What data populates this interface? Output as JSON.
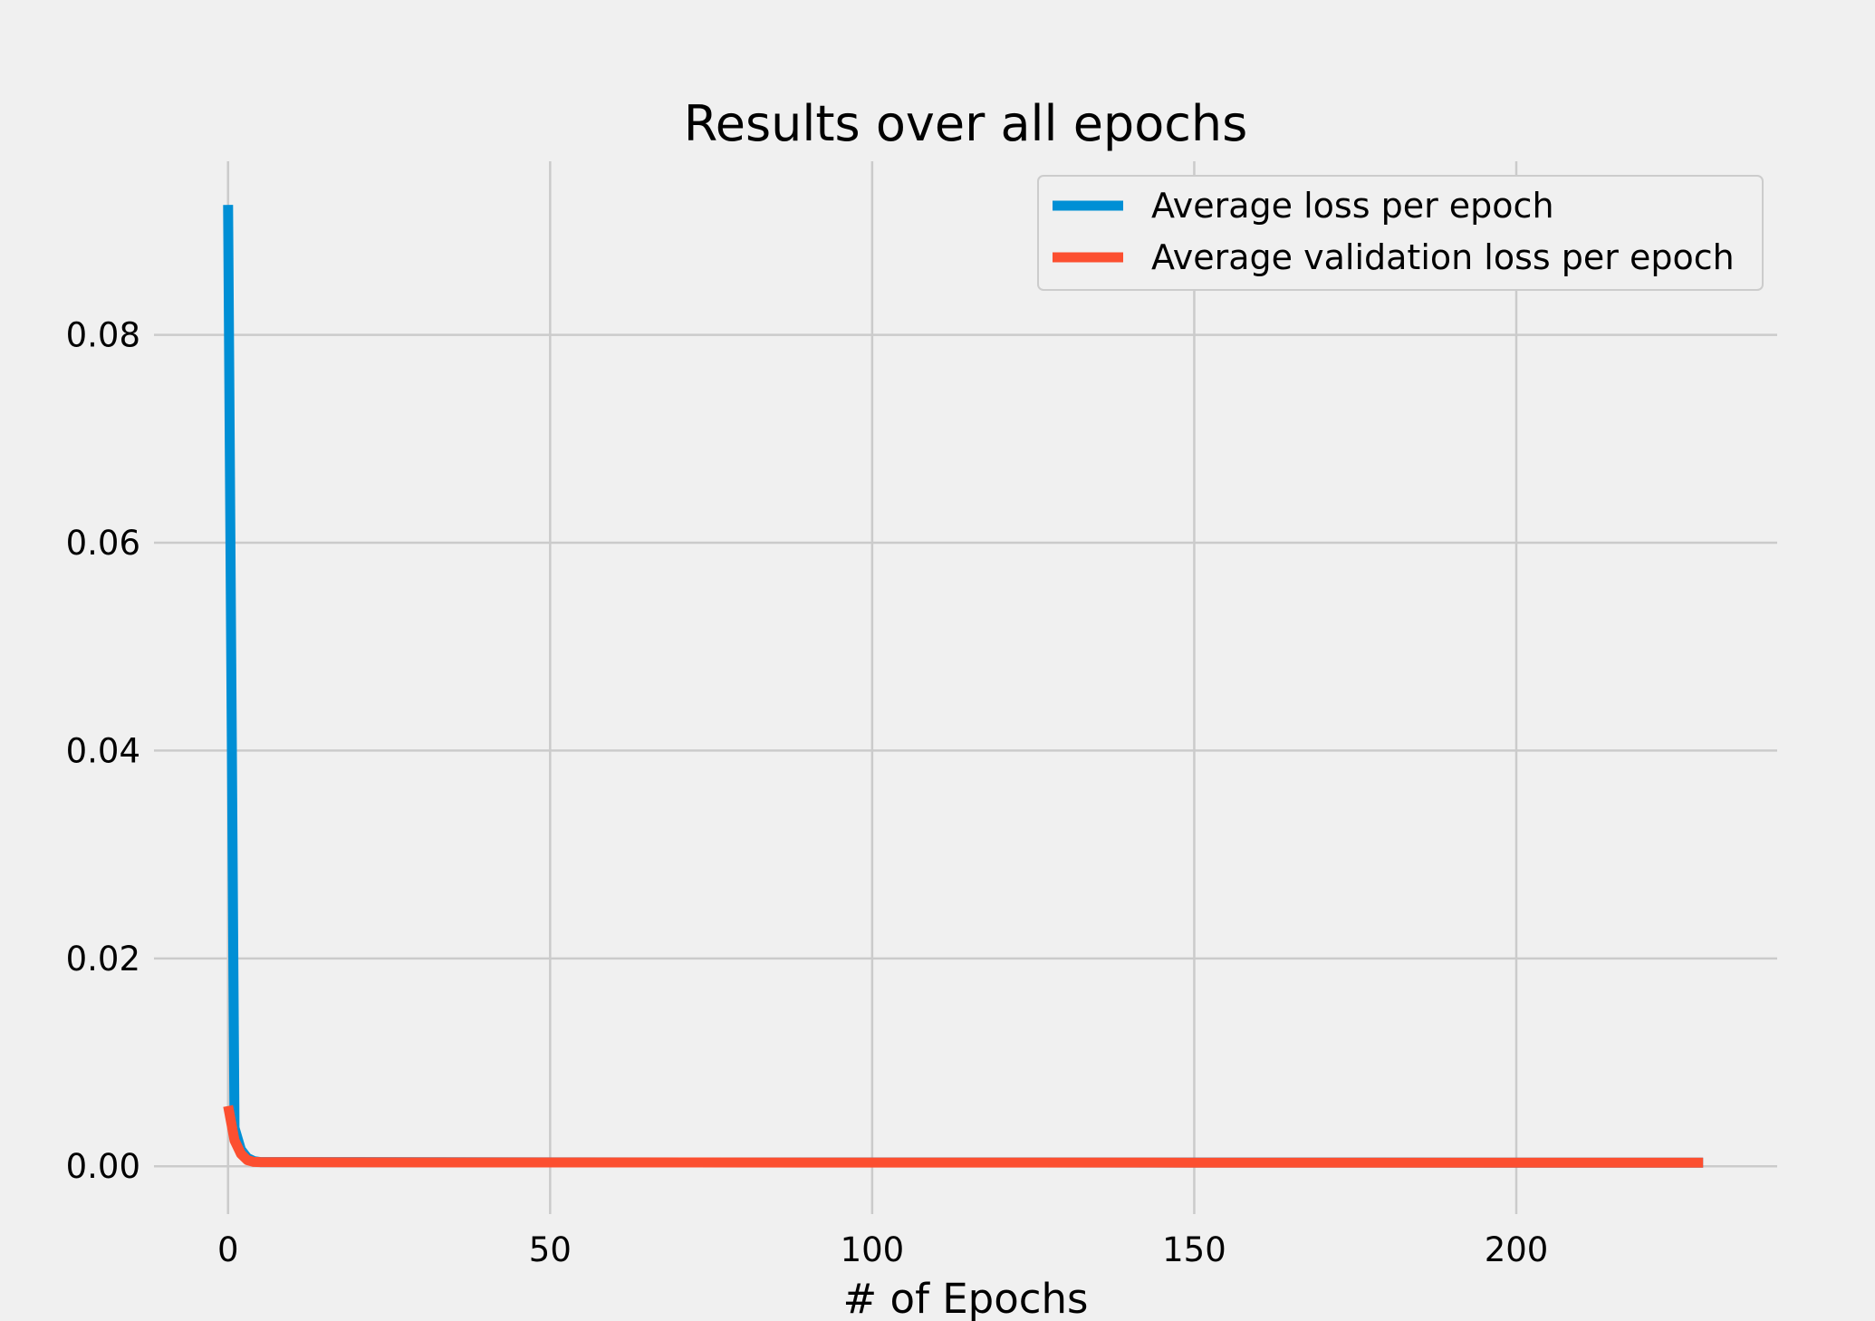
{
  "chart_data": {
    "type": "line",
    "title": "Results over all epochs",
    "xlabel": "# of Epochs",
    "ylabel": "",
    "xlim": [
      -11.5,
      240.5
    ],
    "ylim": [
      -0.0046,
      0.0967
    ],
    "xticks": [
      0,
      50,
      100,
      150,
      200
    ],
    "xtick_labels": [
      "0",
      "50",
      "100",
      "150",
      "200"
    ],
    "yticks": [
      0.0,
      0.02,
      0.04,
      0.06,
      0.08
    ],
    "ytick_labels": [
      "0.00",
      "0.02",
      "0.04",
      "0.06",
      "0.08"
    ],
    "grid": true,
    "legend_position": "top-right",
    "series": [
      {
        "name": "Average loss per epoch",
        "color": "#008fd5",
        "x": [
          0,
          1,
          2,
          3,
          4,
          5,
          10,
          20,
          50,
          100,
          150,
          200,
          229
        ],
        "y": [
          0.0925,
          0.0037,
          0.0016,
          0.0008,
          0.0005,
          0.0004,
          0.0004,
          0.0004,
          0.00038,
          0.00037,
          0.00036,
          0.00035,
          0.00035
        ]
      },
      {
        "name": "Average validation loss per epoch",
        "color": "#fc4f30",
        "x": [
          0,
          1,
          2,
          3,
          4,
          5,
          10,
          20,
          50,
          100,
          150,
          200,
          229
        ],
        "y": [
          0.0058,
          0.0025,
          0.0012,
          0.0006,
          0.00042,
          0.0004,
          0.00039,
          0.00038,
          0.00037,
          0.00036,
          0.00035,
          0.00035,
          0.00035
        ]
      }
    ]
  }
}
